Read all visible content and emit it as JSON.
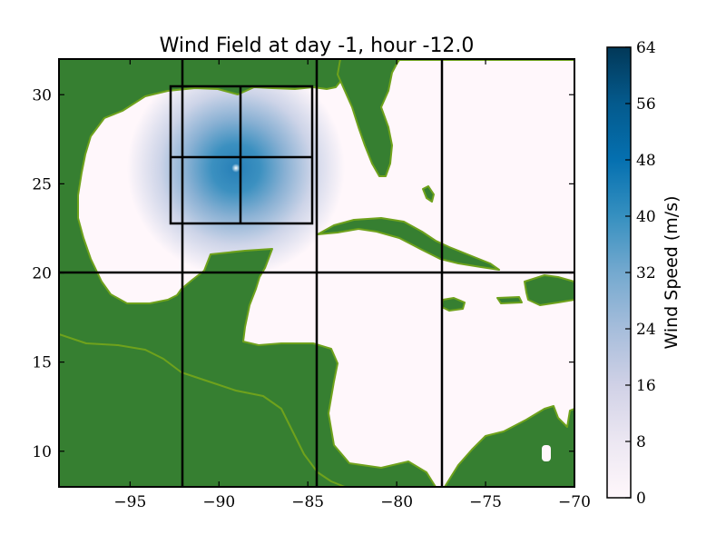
{
  "chart_data": {
    "type": "heatmap",
    "title": "Wind Field at day -1, hour -12.0",
    "xlabel": "",
    "ylabel": "",
    "xlim": [
      -99,
      -70
    ],
    "ylim": [
      8,
      32
    ],
    "xticks": [
      -95,
      -90,
      -85,
      -80,
      -75,
      -70
    ],
    "xtick_labels": [
      "−95",
      "−90",
      "−85",
      "−80",
      "−75",
      "−70"
    ],
    "yticks": [
      10,
      15,
      20,
      25,
      30
    ],
    "ytick_labels": [
      "10",
      "15",
      "20",
      "25",
      "30"
    ],
    "colorbar": {
      "label": "Wind Speed (m/s)",
      "range": [
        0,
        64
      ],
      "ticks": [
        0,
        8,
        16,
        24,
        32,
        40,
        48,
        56,
        64
      ],
      "tick_labels": [
        "0",
        "8",
        "16",
        "24",
        "32",
        "40",
        "48",
        "56",
        "64"
      ],
      "colormap": "PuBu"
    },
    "storm": {
      "center_lon": -88.9,
      "center_lat": 26.0,
      "peak_speed": 40
    },
    "grid_lines": {
      "vertical_lon": [
        -92,
        -84.6,
        -77.5
      ],
      "horizontal_lat": [
        20
      ]
    },
    "boxes": [
      {
        "lon": [
          -92.7,
          -84.7
        ],
        "lat": [
          22.8,
          30.5
        ],
        "split_lon": -88.7,
        "split_lat": 26.5
      }
    ],
    "land_color": "#367f31",
    "land_edge_color": "#6fa21c"
  }
}
